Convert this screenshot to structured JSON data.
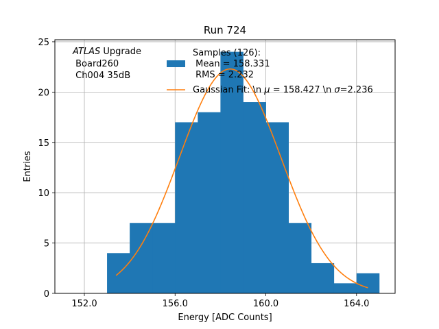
{
  "chart_data": {
    "type": "bar",
    "title": "Run 724",
    "xlabel": "Energy [ADC Counts]",
    "ylabel": "Entries",
    "xlim": [
      150.7,
      165.7
    ],
    "ylim": [
      0,
      25.2
    ],
    "grid": true,
    "xticks": [
      152.0,
      156.0,
      160.0,
      164.0
    ],
    "xtick_labels": [
      "152.0",
      "156.0",
      "160.0",
      "164.0"
    ],
    "yticks": [
      0,
      5,
      10,
      15,
      20,
      25
    ],
    "ytick_labels": [
      "0",
      "5",
      "10",
      "15",
      "20",
      "25"
    ],
    "bin_edges": [
      153,
      154,
      155,
      156,
      157,
      158,
      159,
      160,
      161,
      162,
      163,
      164,
      165
    ],
    "values": [
      4,
      7,
      7,
      17,
      18,
      24,
      19,
      17,
      7,
      3,
      1,
      2
    ],
    "histogram_color": "#1f77b4",
    "fit": {
      "amplitude": 22.3,
      "mean": 158.427,
      "sigma": 2.236,
      "x_range": [
        153.4,
        164.5
      ],
      "color": "#ff7f0e"
    },
    "annotation": {
      "line1_italic": "ATLAS",
      "line1_rest": " Upgrade",
      "line2": " Board260",
      "line3": " Ch004 35dB"
    },
    "legend": {
      "placement": "top-center",
      "hist_lines": [
        "Samples (126):",
        " Mean = 158.331",
        " RMS = 2.232"
      ],
      "fit_pre": "Gaussian Fit: \\n ",
      "fit_mu_symbol": "μ",
      "fit_mid": " = 158.427 \\n ",
      "fit_sigma_symbol": "σ",
      "fit_post": "=2.236"
    }
  }
}
